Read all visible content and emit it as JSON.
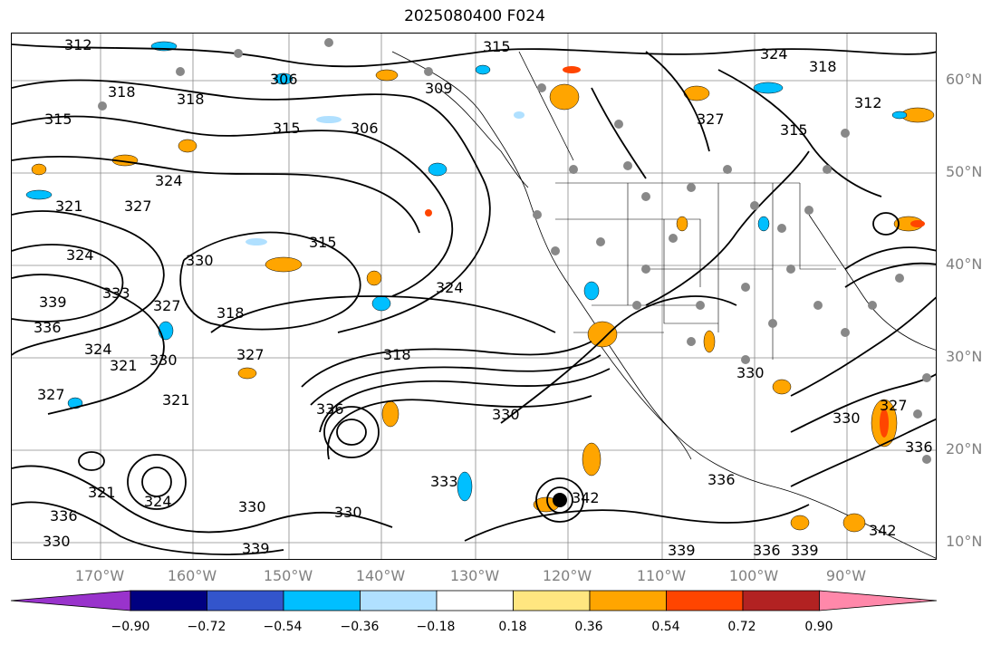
{
  "title": "2025080400 F024",
  "lat_labels": [
    "60°N",
    "50°N",
    "40°N",
    "30°N",
    "20°N",
    "10°N"
  ],
  "lon_labels": [
    "170°W",
    "160°W",
    "150°W",
    "140°W",
    "130°W",
    "120°W",
    "110°W",
    "100°W",
    "90°W"
  ],
  "colorbar": {
    "ticks": [
      "−0.90",
      "−0.72",
      "−0.54",
      "−0.36",
      "−0.18",
      "0.18",
      "0.36",
      "0.54",
      "0.72",
      "0.90"
    ],
    "colors": [
      "#9933cc",
      "#000080",
      "#3355cc",
      "#00bfff",
      "#b0e0ff",
      "#ffffff",
      "#ffe680",
      "#ffa500",
      "#ff4500",
      "#b22222",
      "#ff88aa"
    ]
  },
  "contour_labels": [
    "312",
    "315",
    "324",
    "318",
    "306",
    "309",
    "318",
    "318",
    "315",
    "306",
    "315",
    "327",
    "315",
    "312",
    "324",
    "321",
    "327",
    "324",
    "330",
    "315",
    "324",
    "333",
    "327",
    "339",
    "336",
    "318",
    "324",
    "321",
    "330",
    "327",
    "318",
    "327",
    "321",
    "336",
    "330",
    "333",
    "336",
    "321",
    "324",
    "330",
    "330",
    "336",
    "339",
    "330",
    "330",
    "327",
    "336",
    "339",
    "339",
    "336",
    "330",
    "342",
    "342"
  ]
}
